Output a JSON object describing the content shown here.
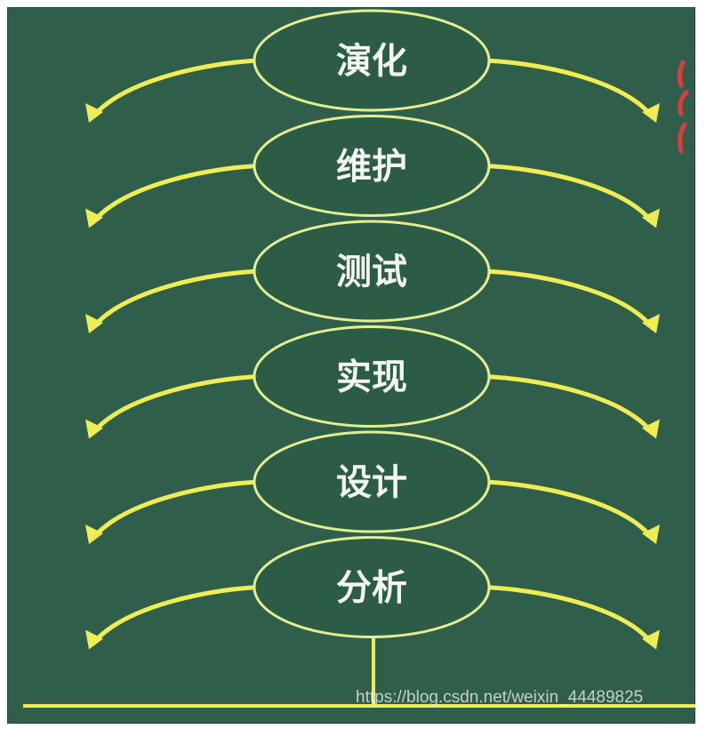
{
  "diagram": {
    "stages": [
      {
        "label": "演化"
      },
      {
        "label": "维护"
      },
      {
        "label": "测试"
      },
      {
        "label": "实现"
      },
      {
        "label": "设计"
      },
      {
        "label": "分析"
      }
    ],
    "colors": {
      "board": "#2f5e4b",
      "ellipse_fill": "#2b5c46",
      "ellipse_stroke": "#e3ef8e",
      "arrow": "#f0ed52",
      "text": "#f4f6f2",
      "ground": "#f0ed52",
      "red_mark": "#e23a3a"
    }
  },
  "watermark": {
    "text": "https://blog.csdn.net/weixin_44489825"
  }
}
